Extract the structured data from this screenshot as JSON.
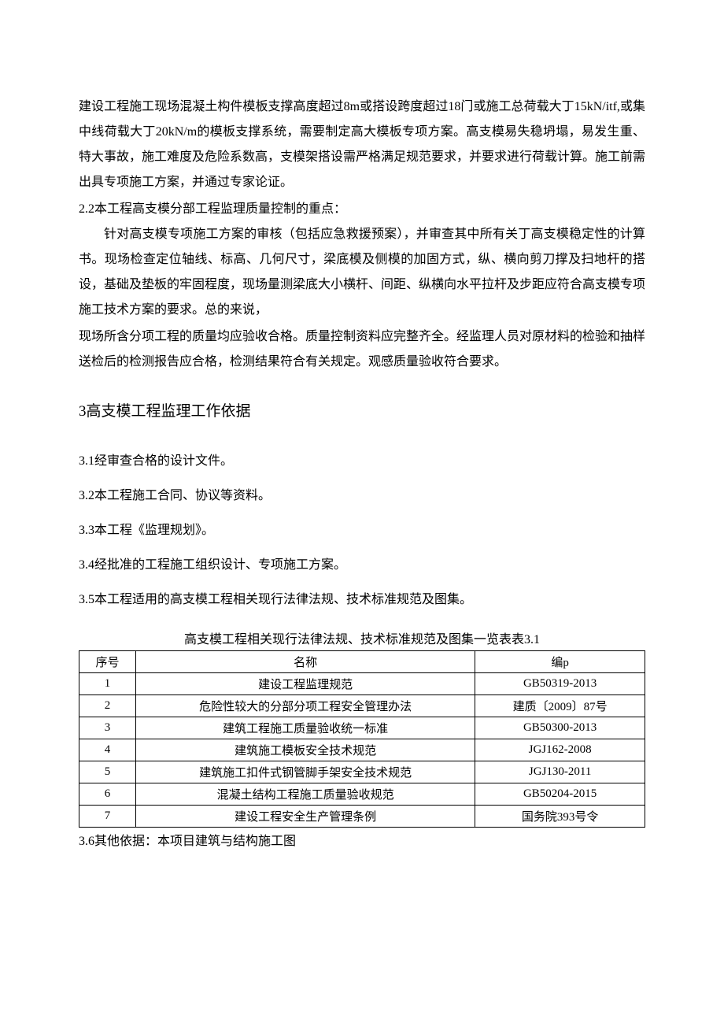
{
  "intro": {
    "p1": "建设工程施工现场混凝土构件模板支撑高度超过8m或搭设跨度超过18门或施工总荷载大丁15kN/itf,或集中线荷载大丁20kN/m的模板支撑系统，需要制定高大模板专项方案。高支模易失稳坍塌，易发生重、特大事故，施工难度及危险系数高，支模架搭设需严格满足规范要求，并要求进行荷载计算。施工前需出具专项施工方案，并通过专家论证。",
    "p2_label": "2.2本工程高支模分部工程监理质量控制的重点：",
    "p3": "针对高支模专项施工方案的审核（包括应急救援预案），并审查其中所有关丁高支模稳定性的计算书。现场检查定位轴线、标高、几何尺寸，梁底模及侧模的加固方式，纵、横向剪刀撑及扫地杆的搭设，基础及垫板的牢固程度，现场量测梁底大小横杆、间距、纵横向水平拉杆及步距应符合高支模专项施工技术方案的要求。总的来说，",
    "p4": "现场所含分项工程的质量均应验收合格。质量控制资料应完整齐全。经监理人员对原材料的检验和抽样送检后的检测报告应合格，检测结果符合有关规定。观感质量验收符合要求。"
  },
  "section3": {
    "heading": "3高支模工程监理工作依据",
    "items": [
      "3.1经审查合格的设计文件。",
      "3.2本工程施工合同、协议等资料。",
      "3.3本工程《监理规划》。",
      "3.4经批准的工程施工组织设计、专项施工方案。",
      "3.5本工程适用的高支模工程相关现行法律法规、技术标准规范及图集。"
    ],
    "after_table": "3.6其他依据：本项目建筑与结构施工图"
  },
  "table": {
    "caption": "高支模工程相关现行法律法规、技术标准规范及图集一览表表3.1",
    "headers": [
      "序号",
      "名称",
      "编p"
    ],
    "rows": [
      [
        "1",
        "建设工程监理规范",
        "GB50319-2013"
      ],
      [
        "2",
        "危险性较大的分部分项工程安全管理办法",
        "建质〔2009〕87号"
      ],
      [
        "3",
        "建筑工程施工质量验收统一标准",
        "GB50300-2013"
      ],
      [
        "4",
        "建筑施工模板安全技术规范",
        "JGJ162-2008"
      ],
      [
        "5",
        "建筑施工扣件式钢管脚手架安全技术规范",
        "JGJ130-2011"
      ],
      [
        "6",
        "混凝土结构工程施工质量验收规范",
        "GB50204-2015"
      ],
      [
        "7",
        "建设工程安全生产管理条例",
        "国务院393号令"
      ]
    ],
    "col_widths": [
      "10%",
      "60%",
      "30%"
    ]
  },
  "style": {
    "background_color": "#ffffff",
    "text_color": "#000000",
    "border_color": "#000000",
    "body_fontsize": 16,
    "heading_fontsize": 19,
    "table_fontsize": 15
  }
}
